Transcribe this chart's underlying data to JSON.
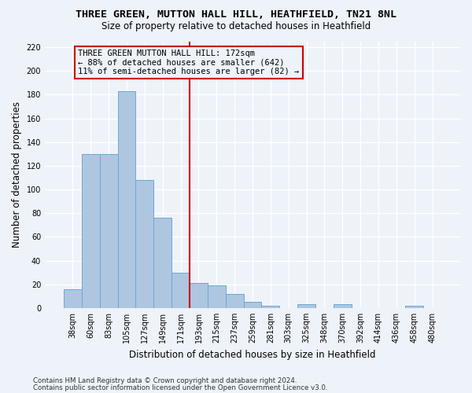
{
  "title1": "THREE GREEN, MUTTON HALL HILL, HEATHFIELD, TN21 8NL",
  "title2": "Size of property relative to detached houses in Heathfield",
  "xlabel": "Distribution of detached houses by size in Heathfield",
  "ylabel": "Number of detached properties",
  "footnote1": "Contains HM Land Registry data © Crown copyright and database right 2024.",
  "footnote2": "Contains public sector information licensed under the Open Government Licence v3.0.",
  "categories": [
    "38sqm",
    "60sqm",
    "83sqm",
    "105sqm",
    "127sqm",
    "149sqm",
    "171sqm",
    "193sqm",
    "215sqm",
    "237sqm",
    "259sqm",
    "281sqm",
    "303sqm",
    "325sqm",
    "348sqm",
    "370sqm",
    "392sqm",
    "414sqm",
    "436sqm",
    "458sqm",
    "480sqm"
  ],
  "values": [
    16,
    130,
    130,
    183,
    108,
    76,
    30,
    21,
    19,
    12,
    5,
    2,
    0,
    3,
    0,
    3,
    0,
    0,
    0,
    2,
    0
  ],
  "bar_color": "#aec6e0",
  "bar_edge_color": "#6aaad4",
  "highlight_index": 6,
  "vline_color": "#cc0000",
  "annotation_line1": "THREE GREEN MUTTON HALL HILL: 172sqm",
  "annotation_line2": "← 88% of detached houses are smaller (642)",
  "annotation_line3": "11% of semi-detached houses are larger (82) →",
  "annotation_box_color": "#cc0000",
  "ylim": [
    0,
    225
  ],
  "yticks": [
    0,
    20,
    40,
    60,
    80,
    100,
    120,
    140,
    160,
    180,
    200,
    220
  ],
  "background_color": "#eef2f9",
  "grid_color": "#ffffff",
  "figsize": [
    6.0,
    5.0
  ],
  "dpi": 100
}
